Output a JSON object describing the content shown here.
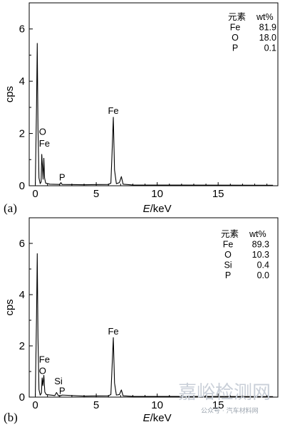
{
  "chart_data": [
    {
      "type": "line",
      "panel_label": "(a)",
      "xlabel_italic": "E",
      "xlabel_rest": "/keV",
      "ylabel": "cps",
      "xlim": [
        -0.5,
        19.9
      ],
      "ylim": [
        0,
        7
      ],
      "xticks": [
        0,
        5,
        10,
        15
      ],
      "xtick_labels": [
        "0",
        "5",
        "10",
        "15"
      ],
      "yticks": [
        0,
        2,
        4,
        6
      ],
      "ytick_labels": [
        "0",
        "2",
        "4",
        "6"
      ],
      "series": [
        {
          "points": [
            [
              0.0,
              0.05
            ],
            [
              0.1,
              3.0
            ],
            [
              0.16,
              5.45
            ],
            [
              0.22,
              2.2
            ],
            [
              0.3,
              0.3
            ],
            [
              0.4,
              0.08
            ],
            [
              0.48,
              0.15
            ],
            [
              0.53,
              1.2
            ],
            [
              0.58,
              0.8
            ],
            [
              0.64,
              0.25
            ],
            [
              0.7,
              1.05
            ],
            [
              0.76,
              0.3
            ],
            [
              0.85,
              0.1
            ],
            [
              1.2,
              0.06
            ],
            [
              2.0,
              0.05
            ],
            [
              2.1,
              0.12
            ],
            [
              2.2,
              0.05
            ],
            [
              4.0,
              0.04
            ],
            [
              6.0,
              0.05
            ],
            [
              6.2,
              0.1
            ],
            [
              6.3,
              1.3
            ],
            [
              6.4,
              2.62
            ],
            [
              6.5,
              0.6
            ],
            [
              6.65,
              0.08
            ],
            [
              6.9,
              0.12
            ],
            [
              7.06,
              0.35
            ],
            [
              7.2,
              0.06
            ],
            [
              8.0,
              0.03
            ],
            [
              19.5,
              0.02
            ]
          ]
        }
      ],
      "annotations": [
        {
          "text": "O",
          "x": 0.6,
          "y": 1.95
        },
        {
          "text": "Fe",
          "x": 0.75,
          "y": 1.5
        },
        {
          "text": "P",
          "x": 2.2,
          "y": 0.2
        },
        {
          "text": "Fe",
          "x": 6.4,
          "y": 2.75
        }
      ],
      "composition_table": {
        "header": [
          "元素",
          "wt%"
        ],
        "rows": [
          [
            "Fe",
            "81.9"
          ],
          [
            "O",
            "18.0"
          ],
          [
            "P",
            "0.1"
          ]
        ]
      }
    },
    {
      "type": "line",
      "panel_label": "(b)",
      "xlabel_italic": "E",
      "xlabel_rest": "/keV",
      "ylabel": "cps",
      "xlim": [
        -0.5,
        19.9
      ],
      "ylim": [
        0,
        7
      ],
      "xticks": [
        0,
        5,
        10,
        15
      ],
      "xtick_labels": [
        "0",
        "5",
        "10",
        "15"
      ],
      "yticks": [
        0,
        2,
        4,
        6
      ],
      "ytick_labels": [
        "0",
        "2",
        "4",
        "6"
      ],
      "series": [
        {
          "points": [
            [
              0.0,
              0.05
            ],
            [
              0.1,
              3.1
            ],
            [
              0.16,
              5.6
            ],
            [
              0.22,
              2.3
            ],
            [
              0.3,
              0.3
            ],
            [
              0.4,
              0.08
            ],
            [
              0.5,
              0.15
            ],
            [
              0.56,
              0.75
            ],
            [
              0.62,
              0.45
            ],
            [
              0.7,
              0.85
            ],
            [
              0.78,
              0.2
            ],
            [
              0.9,
              0.1
            ],
            [
              1.6,
              0.06
            ],
            [
              1.74,
              0.18
            ],
            [
              1.9,
              0.05
            ],
            [
              2.1,
              0.06
            ],
            [
              2.2,
              0.08
            ],
            [
              4.0,
              0.04
            ],
            [
              6.0,
              0.05
            ],
            [
              6.2,
              0.1
            ],
            [
              6.3,
              1.2
            ],
            [
              6.4,
              2.32
            ],
            [
              6.5,
              0.55
            ],
            [
              6.65,
              0.08
            ],
            [
              6.9,
              0.1
            ],
            [
              7.06,
              0.28
            ],
            [
              7.2,
              0.05
            ],
            [
              8.0,
              0.03
            ],
            [
              19.5,
              0.02
            ]
          ]
        }
      ],
      "annotations": [
        {
          "text": "Fe",
          "x": 0.75,
          "y": 1.35
        },
        {
          "text": "O",
          "x": 0.6,
          "y": 0.9
        },
        {
          "text": "Si",
          "x": 1.9,
          "y": 0.5
        },
        {
          "text": "P",
          "x": 2.2,
          "y": 0.12
        },
        {
          "text": "Fe",
          "x": 6.4,
          "y": 2.45
        }
      ],
      "composition_table": {
        "header": [
          "元素",
          "wt%"
        ],
        "rows": [
          [
            "Fe",
            "89.3"
          ],
          [
            "O",
            "10.3"
          ],
          [
            "Si",
            "0.4"
          ],
          [
            "P",
            "0.0"
          ]
        ]
      }
    }
  ],
  "watermark": {
    "main": "嘉峪检测网",
    "sub": "公众号 · 汽车材料网"
  }
}
